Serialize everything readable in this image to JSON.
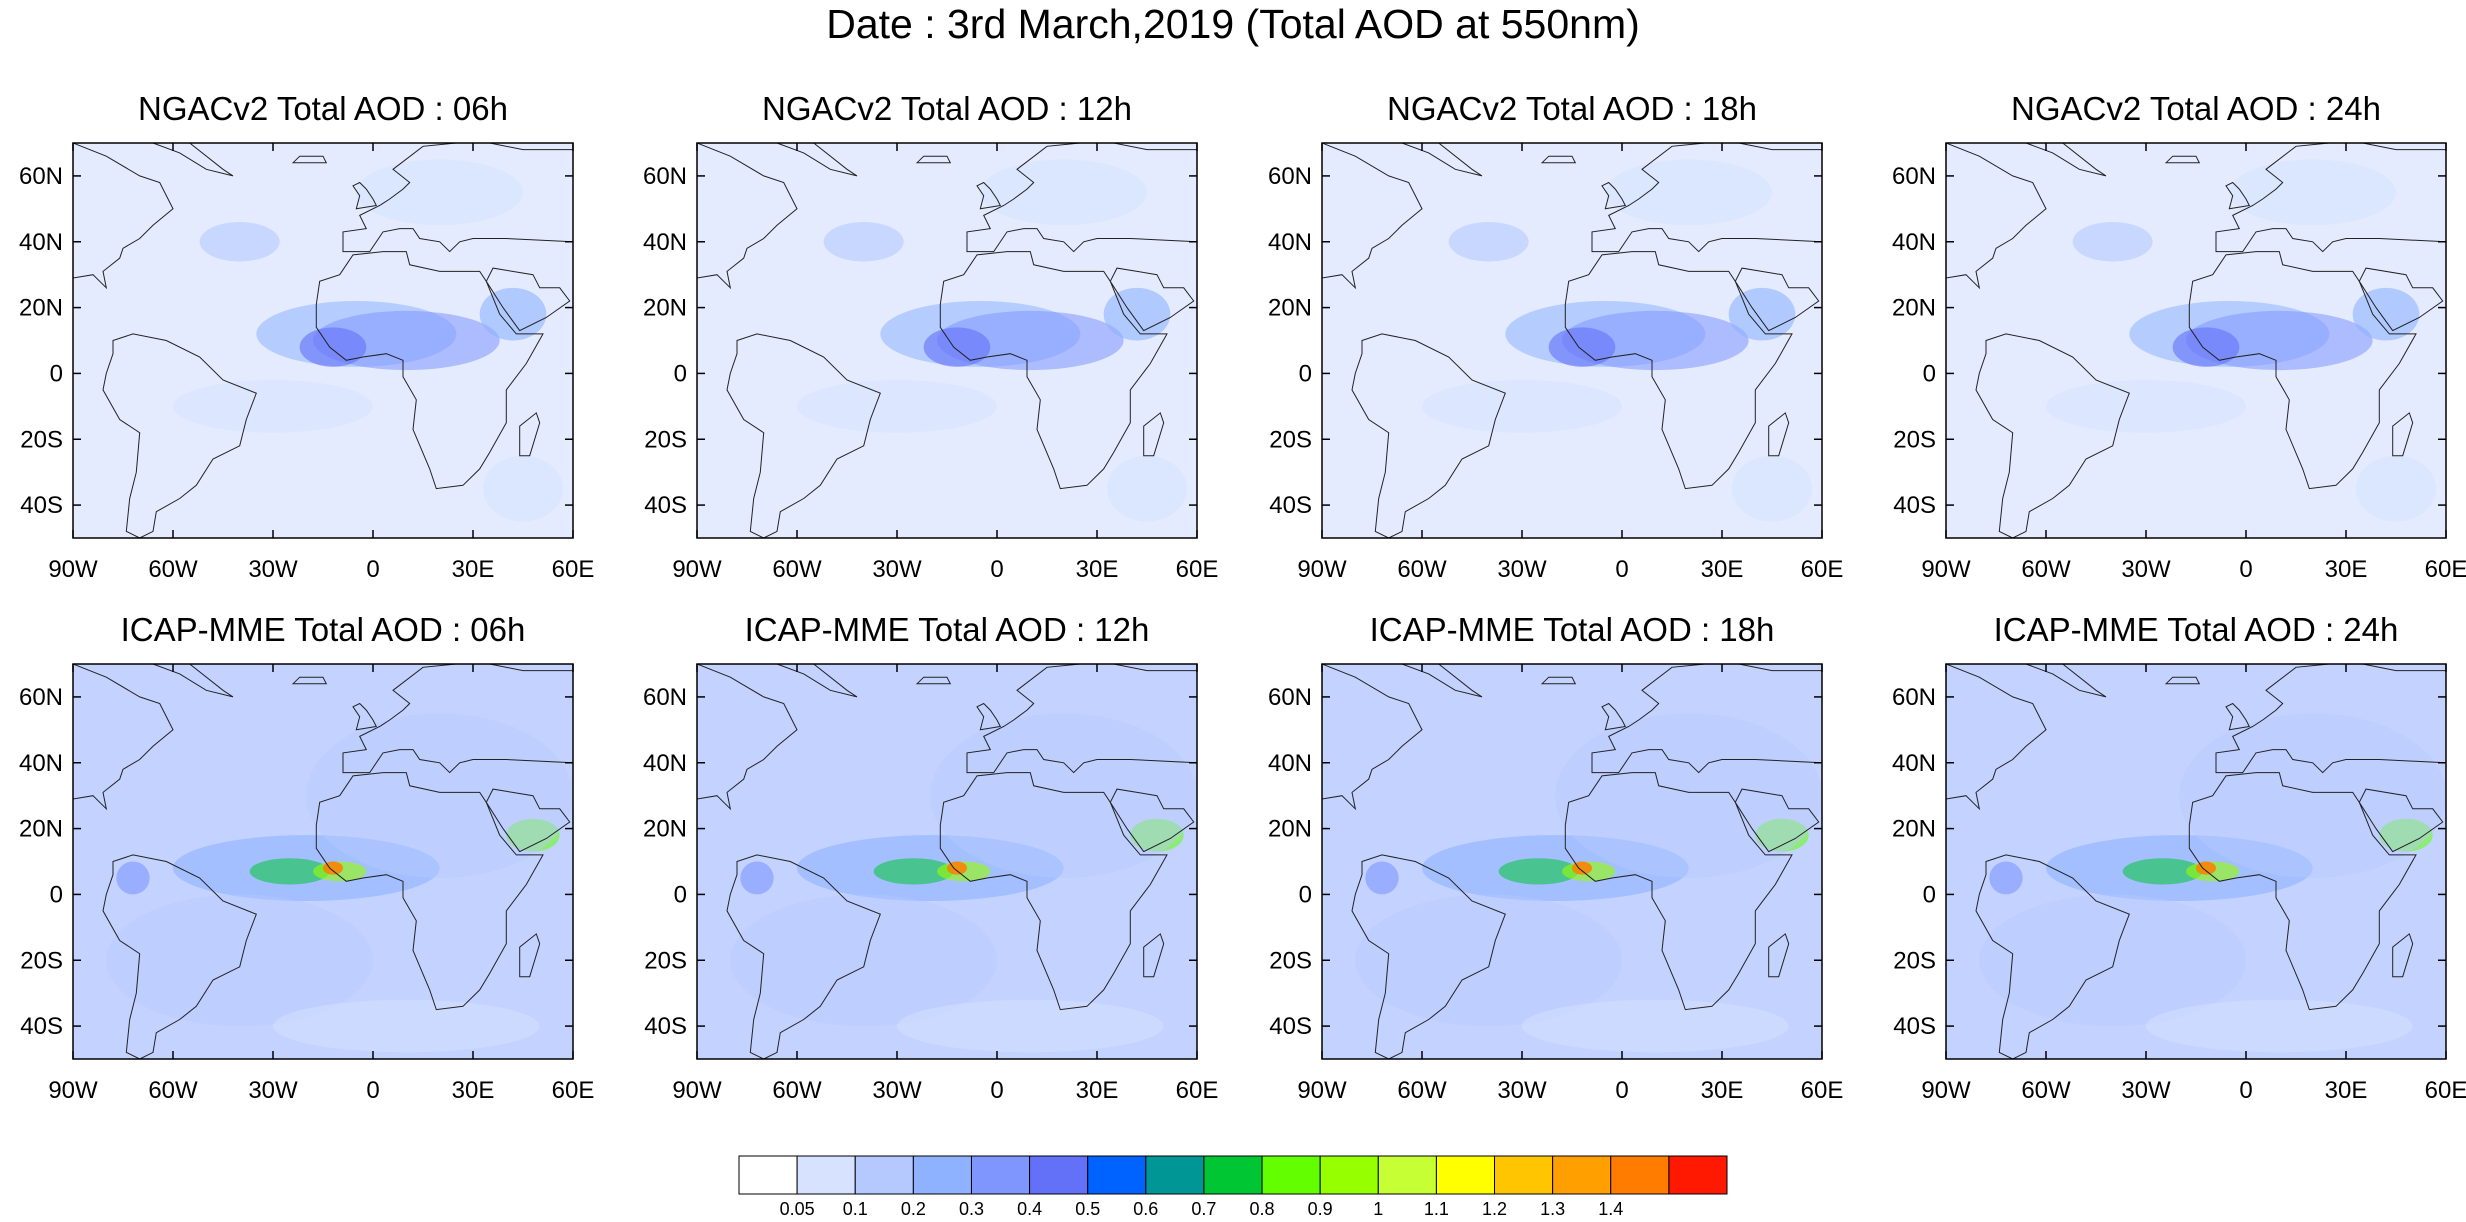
{
  "title": "Date : 3rd March,2019 (Total AOD at 550nm)",
  "axes": {
    "lat_ticks": [
      "60N",
      "40N",
      "20N",
      "0",
      "20S",
      "40S"
    ],
    "lon_ticks": [
      "90W",
      "60W",
      "30W",
      "0",
      "30E",
      "60E"
    ],
    "lat_values": [
      60,
      40,
      20,
      0,
      -20,
      -40
    ],
    "lon_values": [
      -90,
      -60,
      -30,
      0,
      30,
      60
    ],
    "lat_range": [
      -50,
      70
    ],
    "lon_range": [
      -90,
      60
    ]
  },
  "panels": [
    {
      "title": "NGACv2 Total AOD : 06h",
      "model": "NGACv2",
      "hour": "06h"
    },
    {
      "title": "NGACv2 Total AOD : 12h",
      "model": "NGACv2",
      "hour": "12h"
    },
    {
      "title": "NGACv2 Total AOD : 18h",
      "model": "NGACv2",
      "hour": "18h"
    },
    {
      "title": "NGACv2 Total AOD : 24h",
      "model": "NGACv2",
      "hour": "24h"
    },
    {
      "title": "ICAP-MME Total AOD : 06h",
      "model": "ICAP-MME",
      "hour": "06h"
    },
    {
      "title": "ICAP-MME Total AOD : 12h",
      "model": "ICAP-MME",
      "hour": "12h"
    },
    {
      "title": "ICAP-MME Total AOD : 18h",
      "model": "ICAP-MME",
      "hour": "18h"
    },
    {
      "title": "ICAP-MME Total AOD : 24h",
      "model": "ICAP-MME",
      "hour": "24h"
    }
  ],
  "colorbar": {
    "labels": [
      "0.05",
      "0.1",
      "0.2",
      "0.3",
      "0.4",
      "0.5",
      "0.6",
      "0.7",
      "0.8",
      "0.9",
      "1",
      "1.1",
      "1.2",
      "1.3",
      "1.4"
    ],
    "colors": [
      "#ffffff",
      "#d6e2ff",
      "#b5c9ff",
      "#8eb2ff",
      "#7f96ff",
      "#6370f8",
      "#0063ff",
      "#009696",
      "#00c633",
      "#63ff00",
      "#96ff00",
      "#c6ff33",
      "#ffff00",
      "#ffc600",
      "#ffa000",
      "#ff7c00",
      "#ff1900"
    ]
  }
}
